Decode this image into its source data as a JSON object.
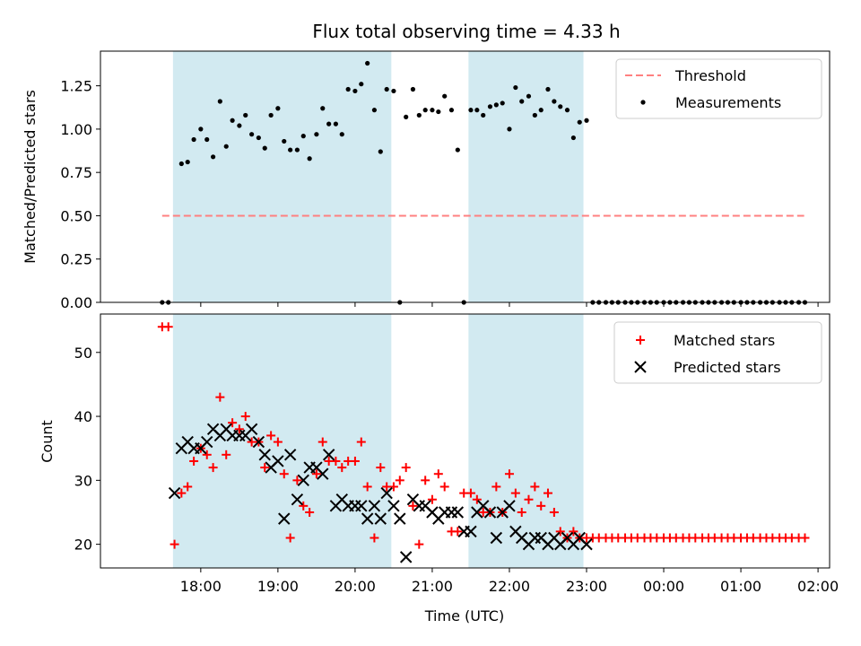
{
  "chart_data": [
    {
      "type": "scatter",
      "title": "Flux total observing time = 4.33 h",
      "xlabel": "",
      "ylabel": "Matched/Predicted stars",
      "ylim": [
        0,
        1.45
      ],
      "yticks": [
        "0.00",
        "0.25",
        "0.50",
        "0.75",
        "1.00",
        "1.25"
      ],
      "ytick_values": [
        0,
        0.25,
        0.5,
        0.75,
        1.0,
        1.25
      ],
      "x_unit": "hours since 00:00 UTC of the observing night (values > 24 are after midnight)",
      "xlim": [
        16.7,
        26.15
      ],
      "xticks_hours": [
        18,
        19,
        20,
        21,
        22,
        23,
        24,
        25,
        26
      ],
      "shaded_intervals": [
        [
          17.64,
          20.47
        ],
        [
          21.47,
          22.96
        ]
      ],
      "shade_color": "#add8e6",
      "grid": false,
      "legend_position": "top-right",
      "legend": [
        "Threshold",
        "Measurements"
      ],
      "threshold": {
        "name": "Threshold",
        "value": 0.5,
        "x_range": [
          17.5,
          25.82
        ],
        "color": "#ff8080"
      },
      "series": [
        {
          "name": "Measurements",
          "color": "#000000",
          "x": [
            17.5,
            17.58,
            17.75,
            17.83,
            17.91,
            18.0,
            18.08,
            18.16,
            18.25,
            18.33,
            18.41,
            18.5,
            18.58,
            18.66,
            18.75,
            18.83,
            18.91,
            19.0,
            19.08,
            19.16,
            19.25,
            19.33,
            19.41,
            19.5,
            19.58,
            19.66,
            19.75,
            19.83,
            19.91,
            20.0,
            20.08,
            20.16,
            20.25,
            20.33,
            20.41,
            20.5,
            20.58,
            20.66,
            20.75,
            20.83,
            20.91,
            21.0,
            21.08,
            21.16,
            21.25,
            21.33,
            21.41,
            21.5,
            21.58,
            21.66,
            21.75,
            21.83,
            21.91,
            22.0,
            22.08,
            22.16,
            22.25,
            22.33,
            22.41,
            22.5,
            22.58,
            22.66,
            22.75,
            22.83,
            22.91,
            23.0,
            23.08,
            23.16,
            23.25,
            23.33,
            23.41,
            23.5,
            23.58,
            23.66,
            23.75,
            23.83,
            23.91,
            24.0,
            24.08,
            24.16,
            24.25,
            24.33,
            24.41,
            24.5,
            24.58,
            24.66,
            24.75,
            24.83,
            24.91,
            25.0,
            25.08,
            25.16,
            25.25,
            25.33,
            25.41,
            25.5,
            25.58,
            25.66,
            25.75,
            25.83
          ],
          "y": [
            0,
            0,
            0.8,
            0.81,
            0.94,
            1.0,
            0.94,
            0.84,
            1.16,
            0.9,
            1.05,
            1.02,
            1.08,
            0.97,
            0.95,
            0.89,
            1.08,
            1.12,
            0.93,
            0.88,
            0.88,
            0.96,
            0.83,
            0.97,
            1.12,
            1.03,
            1.03,
            0.97,
            1.23,
            1.22,
            1.26,
            1.38,
            1.11,
            0.87,
            1.23,
            1.22,
            0,
            1.07,
            1.23,
            1.08,
            1.11,
            1.11,
            1.1,
            1.19,
            1.11,
            0.88,
            0,
            1.11,
            1.11,
            1.08,
            1.13,
            1.14,
            1.15,
            1.0,
            1.24,
            1.16,
            1.19,
            1.08,
            1.11,
            1.23,
            1.16,
            1.13,
            1.11,
            0.95,
            1.04,
            1.05,
            0,
            0,
            0,
            0,
            0,
            0,
            0,
            0,
            0,
            0,
            0,
            0,
            0,
            0,
            0,
            0,
            0,
            0,
            0,
            0,
            0,
            0,
            0,
            0,
            0,
            0,
            0,
            0,
            0,
            0,
            0,
            0,
            0,
            0
          ]
        }
      ]
    },
    {
      "type": "scatter",
      "title": "",
      "xlabel": "Time (UTC)",
      "ylabel": "Count",
      "ylim": [
        16.3,
        56
      ],
      "yticks": [
        "20",
        "30",
        "40",
        "50"
      ],
      "ytick_values": [
        20,
        30,
        40,
        50
      ],
      "x_unit": "hours since 00:00 UTC of the observing night (values > 24 are after midnight)",
      "xlim": [
        16.7,
        26.15
      ],
      "xticks": [
        "18:00",
        "19:00",
        "20:00",
        "21:00",
        "22:00",
        "23:00",
        "00:00",
        "01:00",
        "02:00"
      ],
      "xticks_hours": [
        18,
        19,
        20,
        21,
        22,
        23,
        24,
        25,
        26
      ],
      "shaded_intervals": [
        [
          17.64,
          20.47
        ],
        [
          21.47,
          22.96
        ]
      ],
      "shade_color": "#add8e6",
      "grid": false,
      "legend_position": "top-right",
      "legend": [
        "Matched stars",
        "Predicted stars"
      ],
      "series": [
        {
          "name": "Matched stars",
          "marker": "plus",
          "color": "#ff0000",
          "x": [
            17.5,
            17.58,
            17.66,
            17.75,
            17.83,
            17.91,
            18.0,
            18.08,
            18.16,
            18.25,
            18.33,
            18.41,
            18.5,
            18.58,
            18.66,
            18.75,
            18.83,
            18.91,
            19.0,
            19.08,
            19.16,
            19.25,
            19.33,
            19.41,
            19.5,
            19.58,
            19.66,
            19.75,
            19.83,
            19.91,
            20.0,
            20.08,
            20.16,
            20.25,
            20.33,
            20.41,
            20.5,
            20.58,
            20.66,
            20.75,
            20.83,
            20.91,
            21.0,
            21.08,
            21.16,
            21.25,
            21.33,
            21.41,
            21.5,
            21.58,
            21.66,
            21.75,
            21.83,
            21.91,
            22.0,
            22.08,
            22.16,
            22.25,
            22.33,
            22.41,
            22.5,
            22.58,
            22.66,
            22.75,
            22.83,
            22.91,
            23.0,
            23.08,
            23.16,
            23.25,
            23.33,
            23.41,
            23.5,
            23.58,
            23.66,
            23.75,
            23.83,
            23.91,
            24.0,
            24.08,
            24.16,
            24.25,
            24.33,
            24.41,
            24.5,
            24.58,
            24.66,
            24.75,
            24.83,
            24.91,
            25.0,
            25.08,
            25.16,
            25.25,
            25.33,
            25.41,
            25.5,
            25.58,
            25.66,
            25.75,
            25.83
          ],
          "y": [
            54,
            54,
            20,
            28,
            29,
            33,
            35,
            34,
            32,
            43,
            34,
            39,
            38,
            40,
            36,
            36,
            32,
            37,
            36,
            31,
            21,
            30,
            26,
            25,
            31,
            36,
            33,
            33,
            32,
            33,
            33,
            36,
            29,
            21,
            32,
            29,
            29,
            30,
            32,
            26,
            20,
            30,
            27,
            31,
            29,
            22,
            22,
            28,
            28,
            27,
            25,
            25,
            29,
            25,
            31,
            28,
            25,
            27,
            29,
            26,
            28,
            25,
            22,
            21,
            22,
            21,
            21,
            21,
            21,
            21,
            21,
            21,
            21,
            21,
            21,
            21,
            21,
            21,
            21,
            21,
            21,
            21,
            21,
            21,
            21,
            21,
            21,
            21,
            21,
            21,
            21,
            21,
            21,
            21,
            21,
            21,
            21,
            21,
            21,
            21,
            21
          ]
        },
        {
          "name": "Predicted stars",
          "marker": "x",
          "color": "#000000",
          "x": [
            17.66,
            17.75,
            17.83,
            17.91,
            18.0,
            18.08,
            18.16,
            18.25,
            18.33,
            18.41,
            18.5,
            18.58,
            18.66,
            18.75,
            18.83,
            18.91,
            19.0,
            19.08,
            19.16,
            19.25,
            19.33,
            19.41,
            19.5,
            19.58,
            19.66,
            19.75,
            19.83,
            19.91,
            20.0,
            20.08,
            20.16,
            20.25,
            20.33,
            20.41,
            20.5,
            20.58,
            20.66,
            20.75,
            20.83,
            20.91,
            21.0,
            21.08,
            21.16,
            21.25,
            21.33,
            21.41,
            21.5,
            21.58,
            21.66,
            21.75,
            21.83,
            21.91,
            22.0,
            22.08,
            22.16,
            22.25,
            22.33,
            22.41,
            22.5,
            22.58,
            22.66,
            22.75,
            22.83,
            22.91,
            23.0
          ],
          "y": [
            28,
            35,
            36,
            35,
            35,
            36,
            38,
            37,
            38,
            37,
            37,
            37,
            38,
            36,
            34,
            32,
            33,
            24,
            34,
            27,
            30,
            32,
            32,
            31,
            34,
            26,
            27,
            26,
            26,
            26,
            24,
            26,
            24,
            28,
            26,
            24,
            18,
            27,
            26,
            26,
            25,
            24,
            25,
            25,
            25,
            22,
            22,
            25,
            26,
            25,
            21,
            25,
            26,
            22,
            21,
            20,
            21,
            21,
            20,
            21,
            20,
            21,
            20,
            21,
            20
          ]
        }
      ]
    }
  ]
}
